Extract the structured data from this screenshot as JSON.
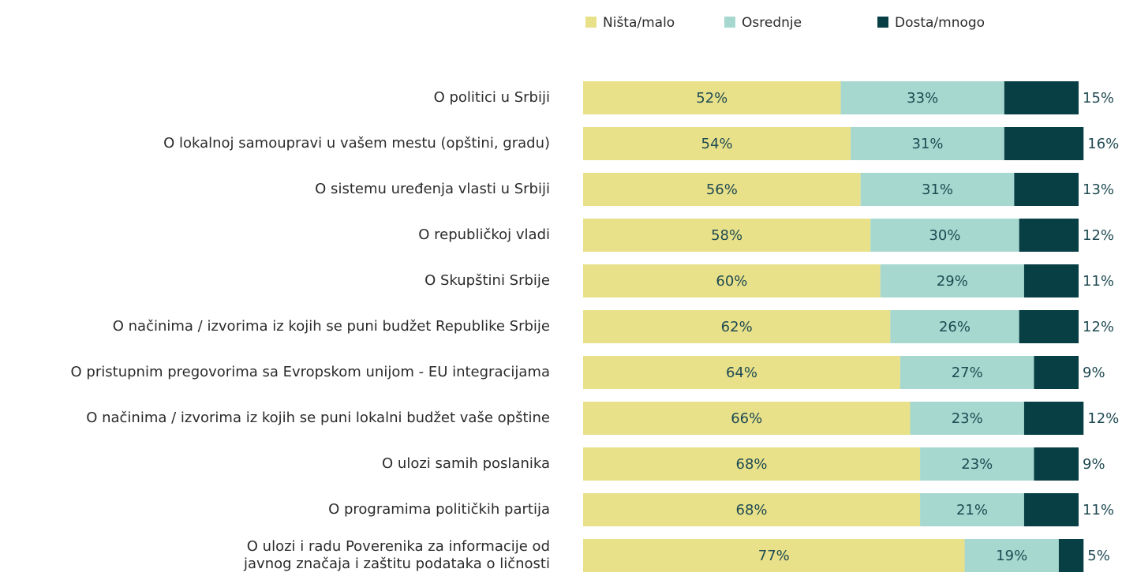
{
  "chart_data": {
    "type": "stacked-bar",
    "orientation": "horizontal",
    "categories": [
      "O politici u Srbiji",
      "O lokalnoj samoupravi u vašem mestu (opštini, gradu)",
      "O sistemu uređenja vlasti u Srbiji",
      "O republičkoj vladi",
      "O Skupštini Srbije",
      "O načinima / izvorima iz kojih se puni budžet Republike Srbije",
      "O pristupnim pregovorima sa Evropskom unijom - EU integracijama",
      "O načinima / izvorima iz kojih se puni lokalni budžet vaše opštine",
      "O ulozi samih poslanika",
      "O programima političkih partija",
      [
        "O ulozi i radu Poverenika za informacije od",
        "javnog značaja i zaštitu podataka o ličnosti"
      ]
    ],
    "series": [
      {
        "name": "Ništa/malo",
        "color": "#e8e18a",
        "values": [
          52,
          54,
          56,
          58,
          60,
          62,
          64,
          66,
          68,
          68,
          77
        ],
        "value_labels": [
          "52%",
          "54%",
          "56%",
          "58%",
          "60%",
          "62%",
          "64%",
          "66%",
          "68%",
          "68%",
          "77%"
        ]
      },
      {
        "name": "Osrednje",
        "color": "#a6d8cf",
        "values": [
          33,
          31,
          31,
          30,
          29,
          26,
          27,
          23,
          23,
          21,
          19
        ],
        "value_labels": [
          "33%",
          "31%",
          "31%",
          "30%",
          "29%",
          "26%",
          "27%",
          "23%",
          "23%",
          "21%",
          "19%"
        ]
      },
      {
        "name": "Dosta/mnogo",
        "color": "#073f45",
        "values": [
          15,
          16,
          13,
          12,
          11,
          12,
          9,
          12,
          9,
          11,
          5
        ],
        "value_labels": [
          "15%",
          "16%",
          "13%",
          "12%",
          "11%",
          "12%",
          "9%",
          "12%",
          "9%",
          "11%",
          "5%"
        ]
      }
    ],
    "xlim": [
      0,
      100
    ],
    "legend": "top"
  }
}
